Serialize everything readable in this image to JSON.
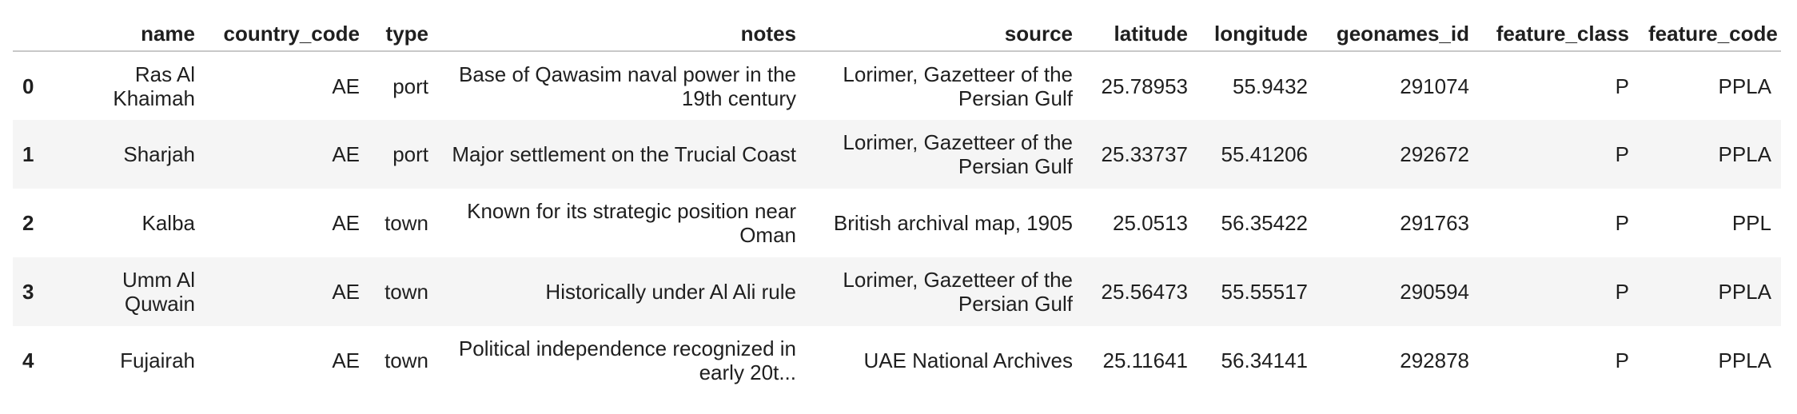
{
  "table": {
    "columns": [
      {
        "key": "index",
        "label": ""
      },
      {
        "key": "name",
        "label": "name"
      },
      {
        "key": "country_code",
        "label": "country_code"
      },
      {
        "key": "type",
        "label": "type"
      },
      {
        "key": "notes",
        "label": "notes"
      },
      {
        "key": "source",
        "label": "source"
      },
      {
        "key": "latitude",
        "label": "latitude"
      },
      {
        "key": "longitude",
        "label": "longitude"
      },
      {
        "key": "geonames_id",
        "label": "geonames_id"
      },
      {
        "key": "feature_class",
        "label": "feature_class"
      },
      {
        "key": "feature_code",
        "label": "feature_code"
      }
    ],
    "rows": [
      {
        "index": "0",
        "name": "Ras Al Khaimah",
        "country_code": "AE",
        "type": "port",
        "notes": "Base of Qawasim naval power in the 19th century",
        "source": "Lorimer, Gazetteer of the Persian Gulf",
        "latitude": "25.78953",
        "longitude": "55.9432",
        "geonames_id": "291074",
        "feature_class": "P",
        "feature_code": "PPLA"
      },
      {
        "index": "1",
        "name": "Sharjah",
        "country_code": "AE",
        "type": "port",
        "notes": "Major settlement on the Trucial Coast",
        "source": "Lorimer, Gazetteer of the Persian Gulf",
        "latitude": "25.33737",
        "longitude": "55.41206",
        "geonames_id": "292672",
        "feature_class": "P",
        "feature_code": "PPLA"
      },
      {
        "index": "2",
        "name": "Kalba",
        "country_code": "AE",
        "type": "town",
        "notes": "Known for its strategic position near Oman",
        "source": "British archival map, 1905",
        "latitude": "25.0513",
        "longitude": "56.35422",
        "geonames_id": "291763",
        "feature_class": "P",
        "feature_code": "PPL"
      },
      {
        "index": "3",
        "name": "Umm Al Quwain",
        "country_code": "AE",
        "type": "town",
        "notes": "Historically under Al Ali rule",
        "source": "Lorimer, Gazetteer of the Persian Gulf",
        "latitude": "25.56473",
        "longitude": "55.55517",
        "geonames_id": "290594",
        "feature_class": "P",
        "feature_code": "PPLA"
      },
      {
        "index": "4",
        "name": "Fujairah",
        "country_code": "AE",
        "type": "town",
        "notes": "Political independence recognized in early 20t...",
        "source": "UAE National Archives",
        "latitude": "25.11641",
        "longitude": "56.34141",
        "geonames_id": "292878",
        "feature_class": "P",
        "feature_code": "PPLA"
      }
    ]
  }
}
